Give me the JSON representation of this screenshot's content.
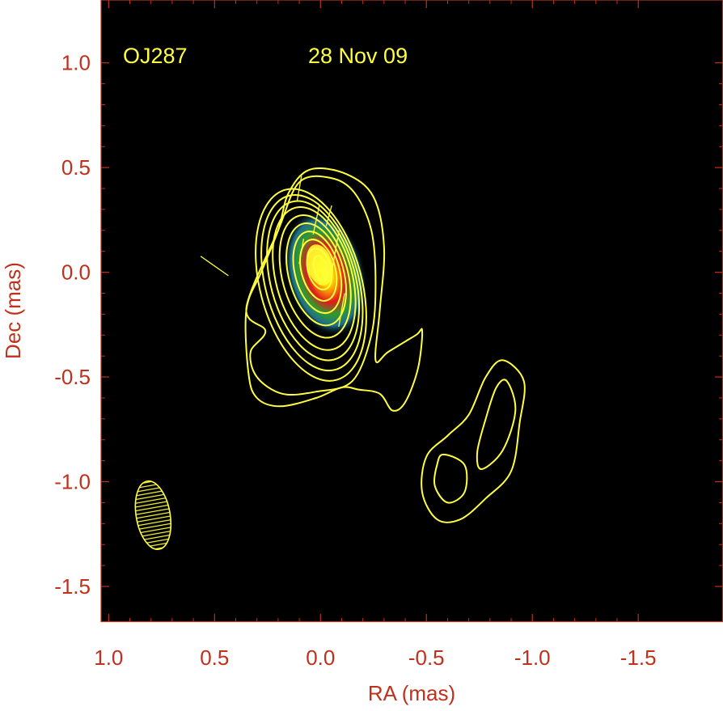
{
  "chart_data": {
    "type": "heatmap",
    "title": "",
    "xlabel": "RA (mas)",
    "ylabel": "Dec (mas)",
    "xlim": [
      1.0356,
      -1.9
    ],
    "ylim": [
      -1.67,
      1.3
    ],
    "x_ticks": [
      1.0,
      0.5,
      0.0,
      -0.5,
      -1.0,
      -1.5
    ],
    "x_tick_labels": [
      "1.0",
      "0.5",
      "0.0",
      "-0.5",
      "-1.0",
      "-1.5"
    ],
    "y_ticks": [
      1.0,
      0.5,
      0.0,
      -0.5,
      -1.0,
      -1.5
    ],
    "y_tick_labels": [
      "1.0",
      "0.5",
      "0.0",
      "-0.5",
      "-1.0",
      "-1.5"
    ],
    "grid": false,
    "annotations": [
      {
        "text": "OJ287",
        "x": 0.87,
        "y": 1.06
      },
      {
        "text": "28 Nov 09",
        "x": 0.05,
        "y": 1.06
      }
    ],
    "peak": {
      "x": 0.0,
      "y": 0.02
    },
    "core_contours": [
      {
        "x": 0.0,
        "y": 0.02,
        "rx": 0.03,
        "ry": 0.06,
        "angle": -15
      },
      {
        "x": 0.005,
        "y": 0.015,
        "rx": 0.055,
        "ry": 0.1,
        "angle": -15
      },
      {
        "x": 0.01,
        "y": 0.01,
        "rx": 0.08,
        "ry": 0.15,
        "angle": -15
      },
      {
        "x": 0.015,
        "y": 0.0,
        "rx": 0.105,
        "ry": 0.2,
        "angle": -15
      },
      {
        "x": 0.02,
        "y": -0.01,
        "rx": 0.13,
        "ry": 0.25,
        "angle": -15
      },
      {
        "x": 0.025,
        "y": -0.02,
        "rx": 0.155,
        "ry": 0.3,
        "angle": -15
      },
      {
        "x": 0.03,
        "y": -0.03,
        "rx": 0.18,
        "ry": 0.35,
        "angle": -15
      },
      {
        "x": 0.035,
        "y": -0.04,
        "rx": 0.2,
        "ry": 0.39,
        "angle": -15
      },
      {
        "x": 0.04,
        "y": -0.05,
        "rx": 0.22,
        "ry": 0.43,
        "angle": -15
      },
      {
        "x": 0.045,
        "y": -0.06,
        "rx": 0.24,
        "ry": 0.47,
        "angle": -15
      }
    ],
    "outer_contour": [
      [
        0.05,
        0.49
      ],
      [
        -0.12,
        0.47
      ],
      [
        -0.25,
        0.36
      ],
      [
        -0.3,
        0.12
      ],
      [
        -0.28,
        -0.18
      ],
      [
        -0.26,
        -0.42
      ],
      [
        -0.32,
        -0.38
      ],
      [
        -0.45,
        -0.3
      ],
      [
        -0.48,
        -0.28
      ],
      [
        -0.46,
        -0.46
      ],
      [
        -0.4,
        -0.62
      ],
      [
        -0.34,
        -0.66
      ],
      [
        -0.28,
        -0.58
      ],
      [
        -0.18,
        -0.56
      ],
      [
        -0.1,
        -0.55
      ],
      [
        0.02,
        -0.6
      ],
      [
        0.19,
        -0.64
      ],
      [
        0.3,
        -0.6
      ],
      [
        0.34,
        -0.48
      ],
      [
        0.35,
        -0.18
      ],
      [
        0.28,
        0.0
      ],
      [
        0.2,
        0.2
      ],
      [
        0.15,
        0.38
      ]
    ],
    "secondary_contour": [
      [
        0.26,
        -0.28
      ],
      [
        0.35,
        -0.17
      ],
      [
        0.2,
        0.2
      ],
      [
        0.1,
        0.43
      ],
      [
        -0.05,
        0.45
      ],
      [
        -0.16,
        0.38
      ],
      [
        -0.24,
        0.2
      ],
      [
        -0.26,
        -0.05
      ],
      [
        -0.24,
        -0.3
      ],
      [
        -0.15,
        -0.52
      ],
      [
        0.02,
        -0.57
      ],
      [
        0.18,
        -0.58
      ],
      [
        0.3,
        -0.5
      ],
      [
        0.33,
        -0.38
      ]
    ],
    "knot_contours": [
      [
        [
          -0.86,
          -0.42
        ],
        [
          -0.96,
          -0.52
        ],
        [
          -0.94,
          -0.72
        ],
        [
          -0.9,
          -0.95
        ],
        [
          -0.78,
          -1.08
        ],
        [
          -0.66,
          -1.18
        ],
        [
          -0.55,
          -1.18
        ],
        [
          -0.48,
          -1.05
        ],
        [
          -0.5,
          -0.88
        ],
        [
          -0.6,
          -0.78
        ],
        [
          -0.7,
          -0.68
        ],
        [
          -0.78,
          -0.5
        ]
      ],
      [
        [
          -0.88,
          -0.52
        ],
        [
          -0.92,
          -0.66
        ],
        [
          -0.86,
          -0.85
        ],
        [
          -0.76,
          -0.94
        ],
        [
          -0.74,
          -0.86
        ],
        [
          -0.78,
          -0.7
        ],
        [
          -0.83,
          -0.55
        ]
      ],
      [
        [
          -0.58,
          -0.87
        ],
        [
          -0.68,
          -0.92
        ],
        [
          -0.68,
          -1.05
        ],
        [
          -0.6,
          -1.1
        ],
        [
          -0.54,
          -1.02
        ],
        [
          -0.55,
          -0.92
        ]
      ]
    ],
    "beam": {
      "x": 0.79,
      "y": -1.16,
      "major": 0.33,
      "minor": 0.16,
      "angle": -10
    },
    "polarization_vectors": [
      {
        "x": 0.5,
        "y": 0.03,
        "length": 0.16,
        "angle_deg": -35
      },
      {
        "x": 0.1,
        "y": 0.4,
        "length": 0.12,
        "angle_deg": 80
      },
      {
        "x": 0.02,
        "y": 0.25,
        "length": 0.14,
        "angle_deg": 78
      },
      {
        "x": -0.07,
        "y": 0.1,
        "length": 0.2,
        "angle_deg": 80
      },
      {
        "x": -0.1,
        "y": -0.18,
        "length": 0.16,
        "angle_deg": 80
      },
      {
        "x": 0.09,
        "y": 0.1,
        "length": 0.12,
        "angle_deg": 80
      },
      {
        "x": -0.04,
        "y": 0.27,
        "length": 0.1,
        "angle_deg": 75
      }
    ],
    "colors": {
      "axes": "#c0311d",
      "contour": "#ffff40",
      "annotation": "#ffff40",
      "background": "#000000",
      "page": "#ffffff"
    }
  }
}
